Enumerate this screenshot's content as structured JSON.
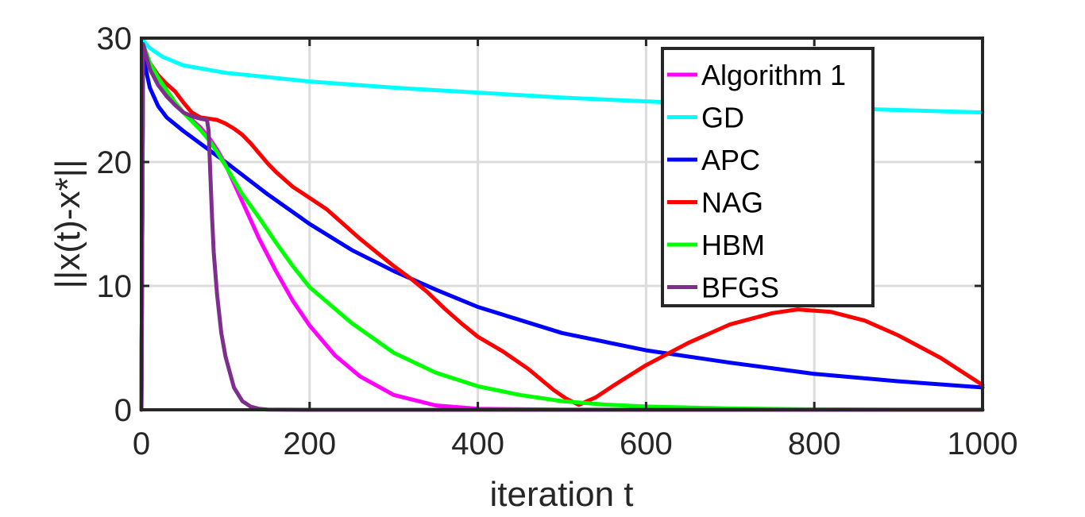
{
  "chart_data": {
    "type": "line",
    "xlabel": "iteration t",
    "ylabel": "||x(t)-x*||",
    "xlim": [
      0,
      1000
    ],
    "ylim": [
      0,
      30
    ],
    "xticks": [
      0,
      200,
      400,
      600,
      800,
      1000
    ],
    "yticks": [
      0,
      10,
      20,
      30
    ],
    "xtick_labels": [
      "0",
      "200",
      "400",
      "600",
      "800",
      "1000"
    ],
    "ytick_labels": [
      "0",
      "10",
      "20",
      "30"
    ],
    "grid": true,
    "legend_position": "top-right",
    "series": [
      {
        "name": "Algorithm 1",
        "color": "#ff00ff",
        "x": [
          0,
          2,
          10,
          20,
          30,
          40,
          50,
          60,
          70,
          80,
          90,
          100,
          120,
          140,
          160,
          180,
          200,
          230,
          260,
          300,
          350,
          400,
          500,
          600,
          800,
          1000
        ],
        "y": [
          0,
          29.5,
          28,
          26.8,
          25.8,
          24.8,
          24,
          23.4,
          22.8,
          22,
          21,
          19.8,
          16.8,
          13.8,
          11.2,
          8.8,
          6.8,
          4.4,
          2.7,
          1.2,
          0.35,
          0.08,
          0.01,
          0,
          0,
          0
        ]
      },
      {
        "name": "GD",
        "color": "#00ffff",
        "x": [
          0,
          2,
          10,
          25,
          50,
          100,
          200,
          300,
          400,
          500,
          600,
          700,
          800,
          900,
          1000
        ],
        "y": [
          0,
          29.8,
          29.2,
          28.5,
          27.8,
          27.2,
          26.5,
          26,
          25.6,
          25.2,
          24.9,
          24.6,
          24.4,
          24.2,
          24
        ]
      },
      {
        "name": "APC",
        "color": "#0000ff",
        "x": [
          0,
          2,
          10,
          20,
          30,
          50,
          100,
          150,
          200,
          250,
          300,
          350,
          400,
          500,
          600,
          700,
          800,
          900,
          1000
        ],
        "y": [
          0,
          28.5,
          26,
          24.5,
          23.6,
          22.5,
          20,
          17.4,
          15,
          12.9,
          11.2,
          9.7,
          8.3,
          6.2,
          4.8,
          3.8,
          2.9,
          2.3,
          1.8
        ]
      },
      {
        "name": "NAG",
        "color": "#ff0000",
        "x": [
          0,
          2,
          10,
          20,
          30,
          40,
          50,
          60,
          70,
          80,
          90,
          100,
          110,
          120,
          130,
          140,
          150,
          160,
          180,
          200,
          220,
          240,
          260,
          280,
          300,
          320,
          340,
          360,
          380,
          400,
          430,
          460,
          490,
          505,
          520,
          540,
          560,
          600,
          650,
          700,
          750,
          780,
          820,
          860,
          900,
          950,
          1000
        ],
        "y": [
          0,
          29.5,
          28,
          27,
          26.3,
          25.7,
          24.8,
          24,
          23.6,
          23.5,
          23.4,
          23.1,
          22.7,
          22.2,
          21.5,
          20.7,
          19.9,
          19.2,
          18,
          17.1,
          16.2,
          15,
          13.8,
          12.7,
          11.6,
          10.6,
          9.5,
          8.2,
          7,
          5.9,
          4.7,
          3.3,
          1.6,
          0.9,
          0.4,
          1,
          1.9,
          3.6,
          5.4,
          6.9,
          7.8,
          8.1,
          7.9,
          7.2,
          6,
          4.2,
          2
        ]
      },
      {
        "name": "HBM",
        "color": "#00ff00",
        "x": [
          0,
          2,
          10,
          20,
          30,
          40,
          50,
          60,
          70,
          80,
          90,
          100,
          120,
          140,
          160,
          180,
          200,
          250,
          300,
          350,
          400,
          450,
          500,
          550,
          600,
          700,
          800,
          900,
          1000
        ],
        "y": [
          0,
          29.5,
          28,
          26.8,
          25.8,
          24.8,
          24,
          23.3,
          22.6,
          21.8,
          20.8,
          19.7,
          17.4,
          15.5,
          13.5,
          11.6,
          9.9,
          7,
          4.6,
          3,
          1.9,
          1.2,
          0.7,
          0.42,
          0.26,
          0.1,
          0.04,
          0.02,
          0.01
        ]
      },
      {
        "name": "BFGS",
        "color": "#7e2f8e",
        "x": [
          0,
          2,
          10,
          20,
          30,
          40,
          50,
          60,
          70,
          78,
          80,
          82,
          84,
          86,
          90,
          95,
          100,
          110,
          120,
          130,
          140,
          150,
          200,
          400,
          600,
          800,
          1000
        ],
        "y": [
          0,
          29.5,
          27.5,
          26.2,
          25.3,
          24.6,
          24,
          23.7,
          23.5,
          23.4,
          22.5,
          19,
          15.5,
          12.7,
          9.3,
          6.2,
          4.3,
          1.8,
          0.7,
          0.25,
          0.08,
          0.02,
          0,
          0,
          0,
          0,
          0
        ]
      }
    ]
  }
}
